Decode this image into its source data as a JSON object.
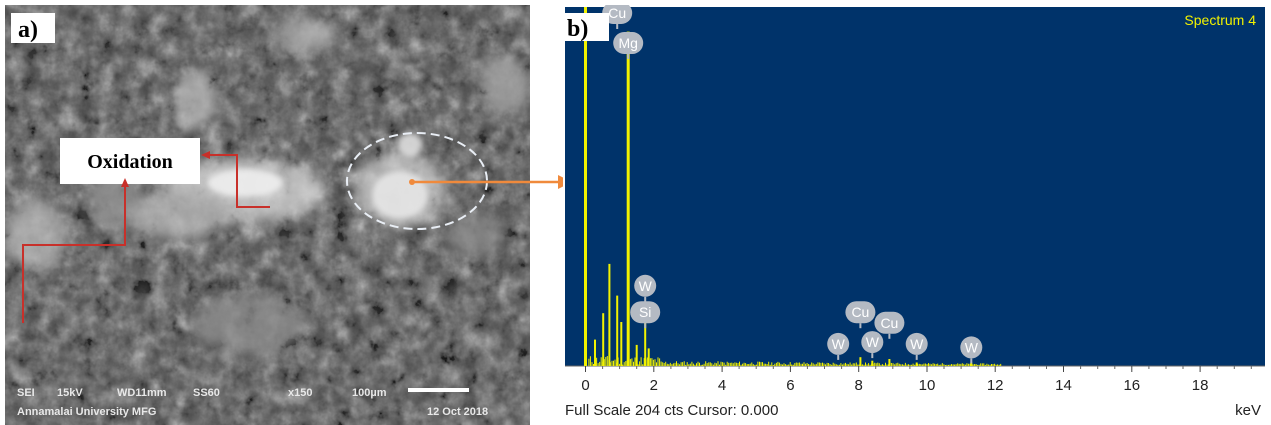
{
  "figure": {
    "panel_a_label": "a)",
    "panel_b_label": "b)"
  },
  "sem": {
    "annotation": "Oxidation",
    "info_line": {
      "mode": "SEI",
      "voltage": "15kV",
      "wd": "WD11mm",
      "ss": "SS60",
      "mag": "x150",
      "scale": "100µm"
    },
    "institution": "Annamalai University MFG",
    "date": "12 Oct 2018",
    "colors": {
      "arrow": "#c8302a",
      "ellipse": "#e9eef5",
      "connector": "#f08a3c"
    }
  },
  "chart_data": {
    "type": "bar",
    "title": "Spectrum 4",
    "xlabel": "keV",
    "ylabel": "",
    "xlim": [
      -0.6,
      19.9
    ],
    "ylim": [
      0,
      204
    ],
    "xticks": [
      0,
      2,
      4,
      6,
      8,
      10,
      12,
      14,
      16,
      18
    ],
    "footer": "Full Scale 204 cts Cursor: 0.000",
    "peaks": [
      {
        "x": 0.0,
        "y": 204
      },
      {
        "x": 0.28,
        "y": 15
      },
      {
        "x": 0.52,
        "y": 30
      },
      {
        "x": 0.7,
        "y": 58
      },
      {
        "x": 0.93,
        "y": 40
      },
      {
        "x": 1.05,
        "y": 25
      },
      {
        "x": 1.25,
        "y": 190
      },
      {
        "x": 1.5,
        "y": 12
      },
      {
        "x": 1.75,
        "y": 28
      },
      {
        "x": 1.85,
        "y": 10
      },
      {
        "x": 8.05,
        "y": 5
      },
      {
        "x": 8.4,
        "y": 3
      },
      {
        "x": 8.9,
        "y": 4
      },
      {
        "x": 9.7,
        "y": 2
      },
      {
        "x": 11.3,
        "y": 2
      }
    ],
    "element_labels": [
      {
        "name": "Cu",
        "x": 0.93,
        "y": 200
      },
      {
        "name": "Mg",
        "x": 1.25,
        "y": 183
      },
      {
        "name": "W",
        "x": 1.75,
        "y": 45
      },
      {
        "name": "Si",
        "x": 1.75,
        "y": 30
      },
      {
        "name": "Cu",
        "x": 8.05,
        "y": 30
      },
      {
        "name": "Cu",
        "x": 8.9,
        "y": 24
      },
      {
        "name": "W",
        "x": 7.4,
        "y": 12
      },
      {
        "name": "W",
        "x": 8.4,
        "y": 13
      },
      {
        "name": "W",
        "x": 9.7,
        "y": 12
      },
      {
        "name": "W",
        "x": 11.3,
        "y": 10
      }
    ],
    "colors": {
      "background": "#00336a",
      "trace": "#f2f200",
      "label_fill": "#b4bac3"
    }
  }
}
